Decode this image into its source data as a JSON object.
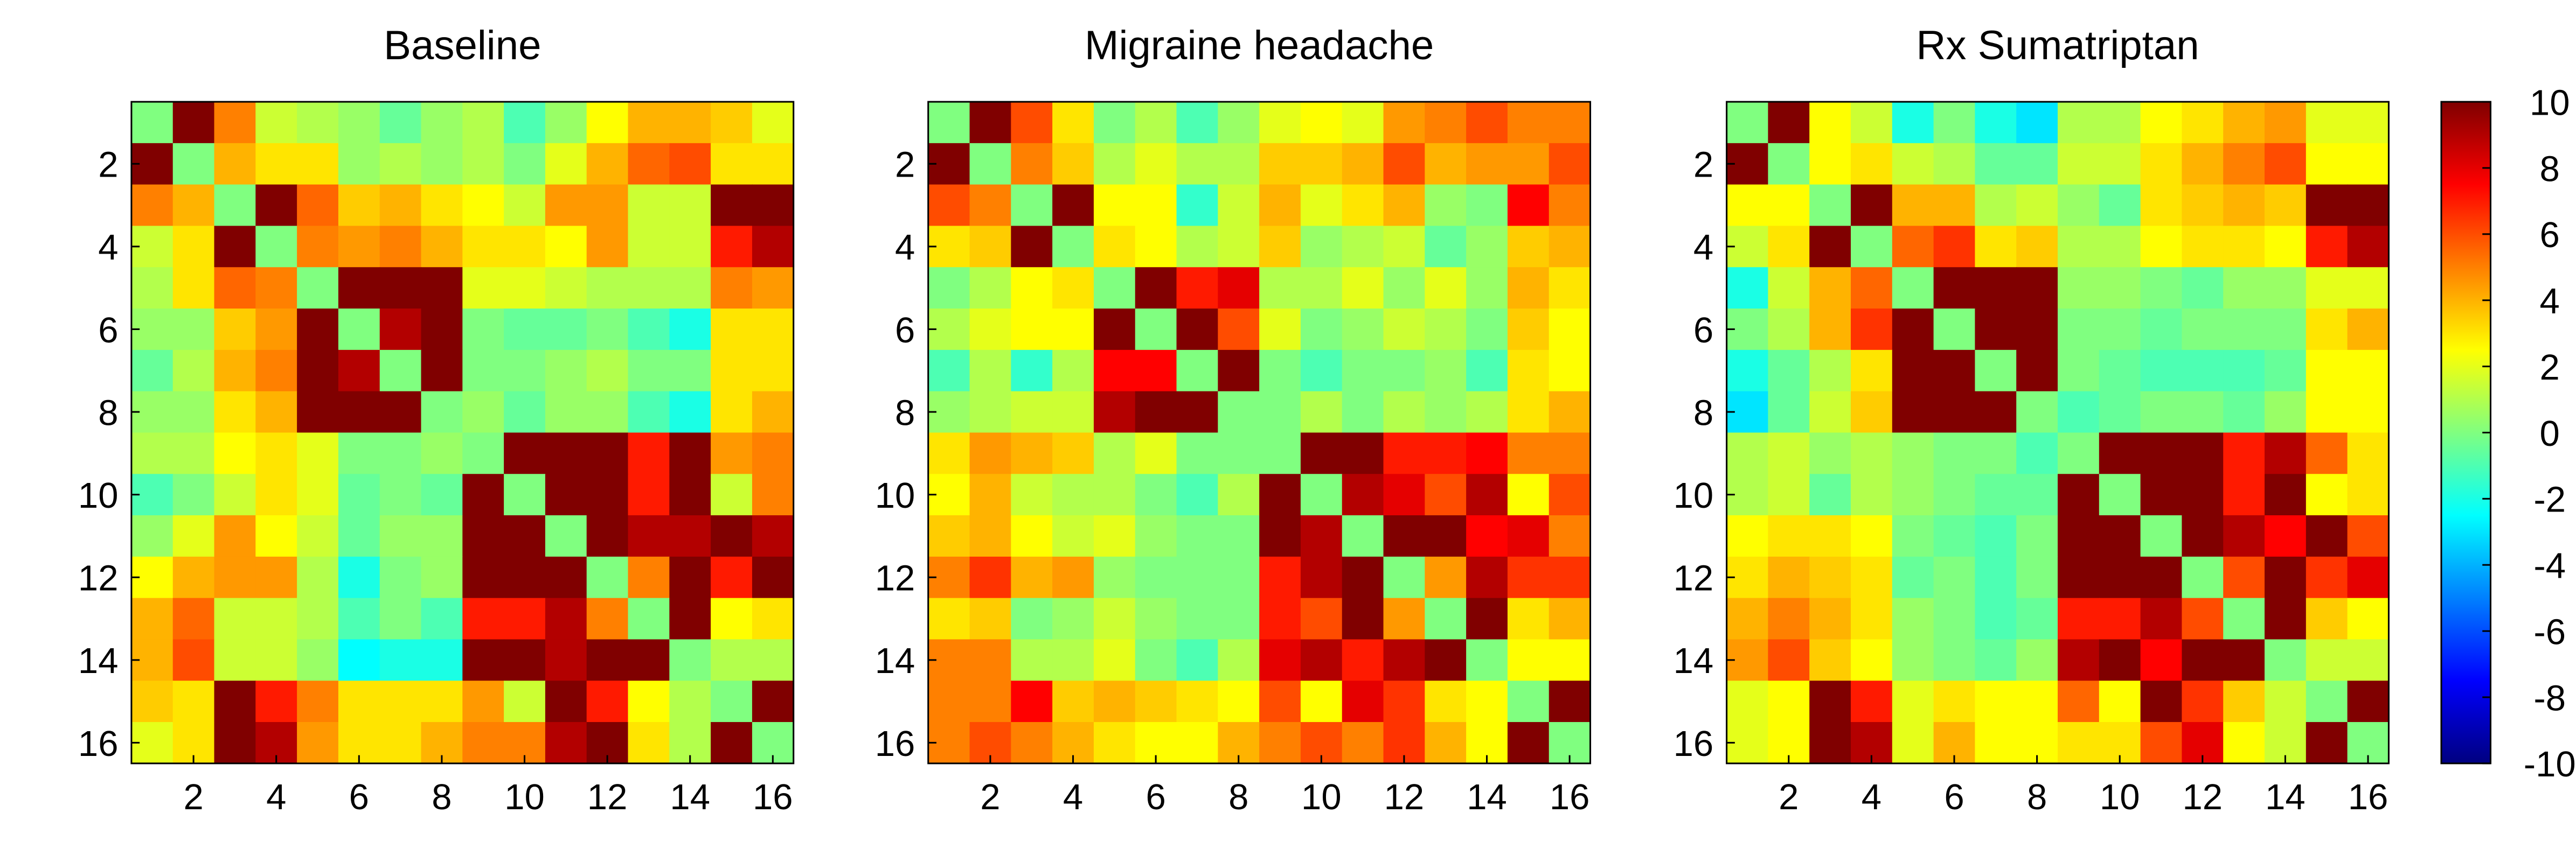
{
  "chart_data": [
    {
      "type": "heatmap",
      "title": "Baseline",
      "xlim": [
        0.5,
        16.5
      ],
      "ylim": [
        16.5,
        0.5
      ],
      "xticks": [
        2,
        4,
        6,
        8,
        10,
        12,
        14,
        16
      ],
      "yticks": [
        2,
        4,
        6,
        8,
        10,
        12,
        14,
        16
      ],
      "z": [
        [
          0,
          10,
          5,
          1.5,
          1,
          0.5,
          -0.5,
          0.5,
          1,
          -1,
          0.5,
          2.5,
          4,
          4,
          3.5,
          2
        ],
        [
          10,
          0,
          4,
          3,
          3,
          0.5,
          1,
          0.5,
          1,
          0,
          2,
          4,
          5.5,
          6,
          3,
          3
        ],
        [
          5,
          4,
          0,
          10,
          5.5,
          3.5,
          4,
          3,
          2.5,
          1.5,
          4.5,
          4.5,
          1.5,
          1.5,
          10,
          10
        ],
        [
          1.5,
          3,
          10,
          0,
          5,
          4.5,
          5,
          4,
          3,
          3,
          2.5,
          4.5,
          1.5,
          1.5,
          7,
          9
        ],
        [
          1,
          3,
          5.5,
          5,
          0,
          10,
          10,
          10,
          2,
          2,
          1.5,
          1,
          1,
          1,
          5,
          4.5
        ],
        [
          0.5,
          0.5,
          3.5,
          4.5,
          10,
          0,
          9,
          10,
          0,
          -0.5,
          -0.5,
          0,
          -1,
          -2,
          3,
          3
        ],
        [
          -0.5,
          1,
          4,
          5,
          10,
          9,
          0,
          10,
          0,
          0,
          0.5,
          1,
          0,
          0,
          3,
          3
        ],
        [
          0.5,
          0.5,
          3,
          4,
          10,
          10,
          10,
          0,
          0.5,
          -0.5,
          0.5,
          0.5,
          -1,
          -2,
          3,
          4
        ],
        [
          1,
          1,
          2.5,
          3,
          2,
          0,
          0,
          0.5,
          0,
          10,
          10,
          10,
          7,
          10,
          4.5,
          5
        ],
        [
          -1,
          0,
          1.5,
          3,
          2,
          -0.5,
          0,
          -0.5,
          10,
          0,
          10,
          10,
          7,
          10,
          1.5,
          5
        ],
        [
          0.5,
          2,
          4.5,
          2.5,
          1.5,
          -0.5,
          0.5,
          0.5,
          10,
          10,
          0,
          10,
          9,
          9,
          10,
          9
        ],
        [
          2.5,
          4,
          4.5,
          4.5,
          1,
          -2,
          0,
          0.5,
          10,
          10,
          10,
          0,
          5,
          10,
          7,
          10
        ],
        [
          4,
          5.5,
          1.5,
          1.5,
          1,
          -1,
          0,
          -1,
          7,
          7,
          9,
          5,
          0,
          10,
          2.5,
          3
        ],
        [
          4,
          6,
          1.5,
          1.5,
          0.5,
          -2.5,
          -2,
          -2,
          10,
          10,
          9,
          10,
          10,
          0,
          1,
          1
        ],
        [
          3.5,
          3,
          10,
          7,
          5,
          3,
          3,
          3,
          4.5,
          1.5,
          10,
          7,
          2.5,
          1,
          0,
          10
        ],
        [
          2,
          3,
          10,
          9,
          4.5,
          3,
          3,
          4,
          5,
          5,
          9,
          10,
          3,
          1,
          10,
          0
        ]
      ]
    },
    {
      "type": "heatmap",
      "title": "Migraine headache",
      "xlim": [
        0.5,
        16.5
      ],
      "ylim": [
        16.5,
        0.5
      ],
      "xticks": [
        2,
        4,
        6,
        8,
        10,
        12,
        14,
        16
      ],
      "yticks": [
        2,
        4,
        6,
        8,
        10,
        12,
        14,
        16
      ],
      "z": [
        [
          0,
          10,
          6,
          3,
          0,
          1,
          -1,
          0.5,
          2,
          2.5,
          2,
          4.5,
          5,
          6,
          5,
          5
        ],
        [
          10,
          0,
          5,
          3.5,
          1,
          2,
          1,
          1,
          3.5,
          3.5,
          4,
          6,
          4,
          4.5,
          4.5,
          6
        ],
        [
          6,
          5,
          0,
          10,
          2.5,
          2.5,
          -1.5,
          1.5,
          4,
          2,
          3,
          4,
          0.5,
          0,
          7.5,
          5
        ],
        [
          3,
          3.5,
          10,
          0,
          3,
          2.5,
          1,
          1.5,
          3.5,
          0.5,
          1,
          1.5,
          -0.5,
          0.5,
          3.5,
          4
        ],
        [
          0,
          1,
          2.5,
          3,
          0,
          10,
          7,
          8,
          1,
          1,
          2,
          0.5,
          2,
          0.5,
          4,
          3
        ],
        [
          1,
          2,
          2.5,
          2.5,
          10,
          0,
          10,
          6,
          2,
          0,
          0.5,
          1.5,
          1,
          0,
          3.5,
          2.5
        ],
        [
          -1,
          1,
          -1.5,
          1,
          7.5,
          7.5,
          0,
          10,
          0,
          -1,
          0,
          0,
          0.5,
          -1,
          3,
          2.5
        ],
        [
          0.5,
          1,
          1.5,
          1.5,
          9,
          10,
          10,
          0,
          0,
          1,
          0,
          1,
          0.5,
          1,
          3,
          4
        ],
        [
          3,
          4.5,
          4,
          3.5,
          1,
          2,
          0,
          0,
          0,
          10,
          10,
          7,
          7,
          7.5,
          5,
          5
        ],
        [
          2.5,
          4,
          1.5,
          1,
          1,
          0,
          -1,
          1,
          10,
          0,
          9,
          8,
          6,
          9,
          2.5,
          6
        ],
        [
          3.5,
          4,
          2.5,
          1.5,
          2,
          0.5,
          0,
          0,
          10,
          9,
          0,
          10,
          10,
          7.5,
          8,
          5
        ],
        [
          5,
          6.5,
          4,
          4.5,
          0.5,
          0,
          0,
          0,
          7,
          9,
          10,
          0,
          4.5,
          9,
          6.5,
          6.5
        ],
        [
          3,
          3.5,
          0,
          0.5,
          1.5,
          0.5,
          0,
          0,
          7,
          6,
          10,
          4.5,
          0,
          10,
          3,
          4
        ],
        [
          5,
          5,
          1,
          1,
          2,
          0,
          -1,
          1,
          8,
          9,
          7,
          9,
          10,
          0,
          2.5,
          2.5
        ],
        [
          5,
          5,
          7.5,
          3.5,
          4,
          3.5,
          3,
          2.5,
          6,
          2.5,
          8,
          6.5,
          3,
          2.5,
          0,
          10
        ],
        [
          5,
          6,
          5,
          4,
          3,
          2.5,
          2.5,
          4,
          5,
          6,
          5,
          6.5,
          4,
          2.5,
          10,
          0
        ]
      ]
    },
    {
      "type": "heatmap",
      "title": "Rx Sumatriptan",
      "xlim": [
        0.5,
        16.5
      ],
      "ylim": [
        16.5,
        0.5
      ],
      "xticks": [
        2,
        4,
        6,
        8,
        10,
        12,
        14,
        16
      ],
      "yticks": [
        2,
        4,
        6,
        8,
        10,
        12,
        14,
        16
      ],
      "z": [
        [
          0,
          10,
          2.5,
          1.5,
          -2,
          0,
          -2,
          -3,
          1,
          1,
          2.5,
          3,
          4,
          4.5,
          2,
          2
        ],
        [
          10,
          0,
          2.5,
          3,
          1.5,
          1,
          -0.5,
          -0.5,
          1.5,
          1.5,
          3,
          4,
          5,
          6,
          2.5,
          2.5
        ],
        [
          2.5,
          2.5,
          0,
          10,
          4,
          4,
          1,
          1.5,
          0.5,
          -0.5,
          3,
          3.5,
          4,
          3.5,
          10,
          10
        ],
        [
          1.5,
          3,
          10,
          0,
          5.5,
          6.5,
          3,
          3.5,
          1,
          1,
          2.5,
          3,
          3,
          2.5,
          7,
          9
        ],
        [
          -2,
          1.5,
          4,
          5.5,
          0,
          10,
          10,
          10,
          0.5,
          0.5,
          0,
          -0.5,
          0.5,
          0.5,
          2,
          2
        ],
        [
          0,
          1,
          4,
          6.5,
          10,
          0,
          10,
          10,
          0,
          0,
          -0.5,
          0,
          0,
          0,
          3,
          4
        ],
        [
          -2,
          -0.5,
          1,
          3,
          10,
          10,
          0,
          10,
          0,
          -0.5,
          -1,
          -1,
          -1,
          -0.5,
          2.5,
          2.5
        ],
        [
          -3,
          -0.5,
          1.5,
          3.5,
          10,
          10,
          10,
          0,
          -1,
          -0.5,
          0,
          0,
          -0.5,
          0.5,
          2.5,
          2.5
        ],
        [
          1,
          1.5,
          0.5,
          1,
          0.5,
          0,
          0,
          -1,
          0,
          10,
          10,
          10,
          7,
          9,
          5.5,
          3
        ],
        [
          1,
          1.5,
          -0.5,
          1,
          0.5,
          0,
          -0.5,
          -0.5,
          10,
          0,
          10,
          10,
          7,
          10,
          2.5,
          3
        ],
        [
          2.5,
          3,
          3,
          2.5,
          0,
          -0.5,
          -1,
          0,
          10,
          10,
          0,
          10,
          9,
          7.5,
          10,
          6
        ],
        [
          3,
          4,
          3.5,
          3,
          -0.5,
          0,
          -1,
          0,
          10,
          10,
          10,
          0,
          6,
          10,
          6.5,
          8
        ],
        [
          4,
          5,
          4,
          3,
          0.5,
          0,
          -1,
          -0.5,
          7,
          7,
          9,
          6,
          0,
          10,
          3.5,
          2.5
        ],
        [
          4.5,
          6,
          3.5,
          2.5,
          0.5,
          0,
          -0.5,
          0.5,
          9,
          10,
          7.5,
          10,
          10,
          0,
          1.5,
          1.5
        ],
        [
          2,
          2.5,
          10,
          7,
          2,
          3,
          2.5,
          2.5,
          5.5,
          2.5,
          10,
          6.5,
          3.5,
          1.5,
          0,
          10
        ],
        [
          2,
          2.5,
          10,
          9,
          2,
          4,
          2.5,
          2.5,
          3,
          3,
          6,
          8,
          2.5,
          1.5,
          10,
          0
        ]
      ]
    },
    {
      "type": "colorbar",
      "colormap": "jet",
      "ylim": [
        -10,
        10
      ],
      "yticks": [
        -10,
        -8,
        -6,
        -4,
        -2,
        0,
        2,
        4,
        6,
        8,
        10
      ]
    }
  ]
}
